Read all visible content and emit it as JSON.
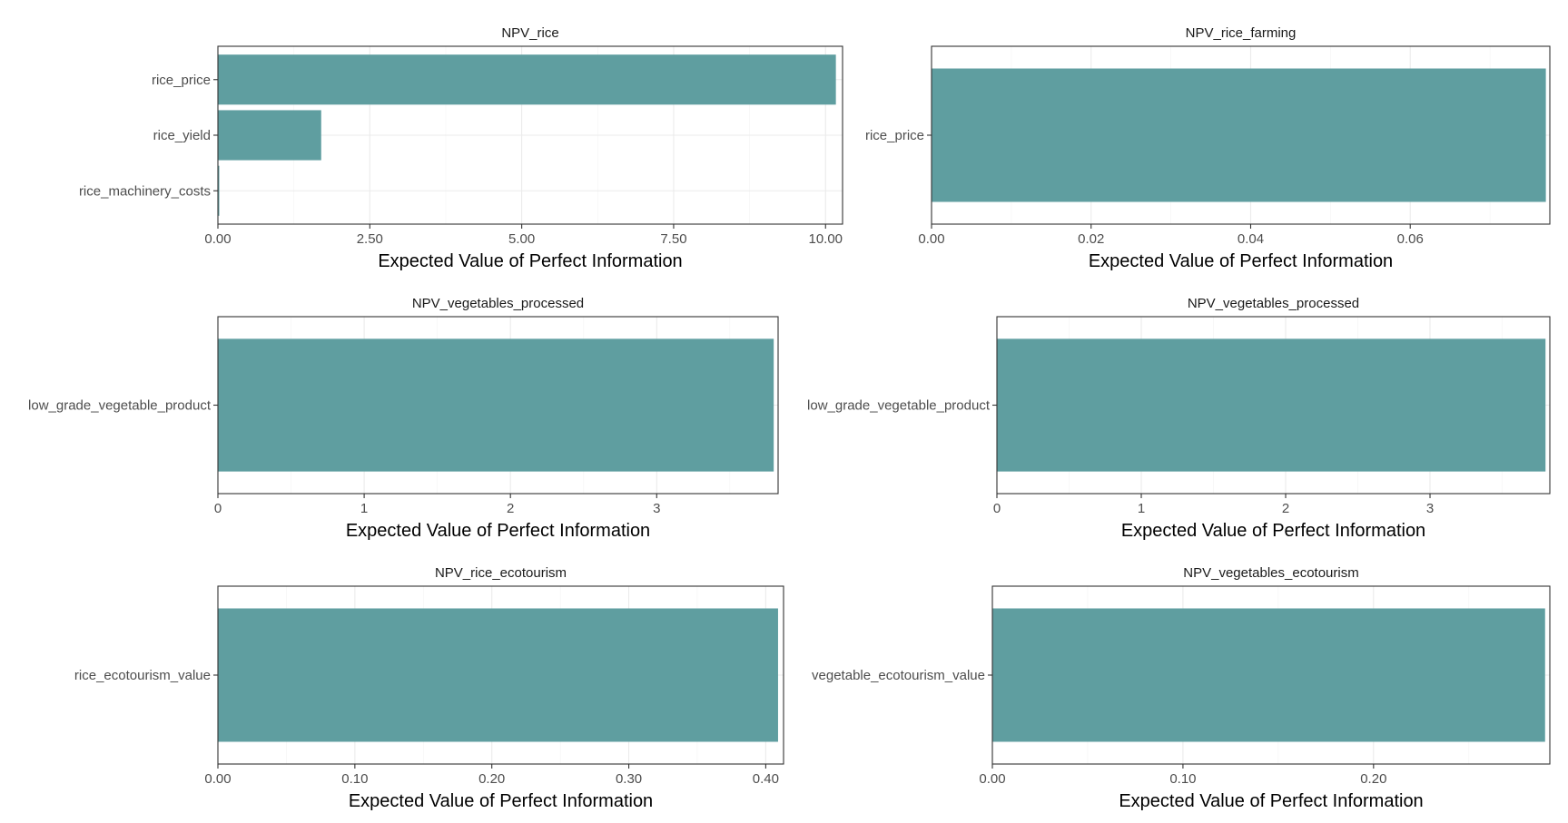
{
  "chart_data": [
    {
      "type": "bar",
      "orientation": "horizontal",
      "title": "NPV_rice",
      "categories": [
        "rice_price",
        "rice_yield",
        "rice_machinery_costs"
      ],
      "values": [
        10.17,
        1.7,
        0.02
      ],
      "xlabel": "Expected Value of Perfect Information",
      "ylabel": "",
      "xlim": [
        0,
        10.28
      ],
      "xticks": [
        0,
        2.5,
        5,
        7.5,
        10
      ],
      "xtick_labels": [
        "0.00",
        "2.50",
        "5.00",
        "7.50",
        "10.00"
      ],
      "grid": true,
      "bar_color": "#5f9ea0"
    },
    {
      "type": "bar",
      "orientation": "horizontal",
      "title": "NPV_rice_farming",
      "categories": [
        "rice_price"
      ],
      "values": [
        0.077
      ],
      "xlabel": "Expected Value of Perfect Information",
      "ylabel": "",
      "xlim": [
        0,
        0.0775
      ],
      "xticks": [
        0,
        0.02,
        0.04,
        0.06
      ],
      "xtick_labels": [
        "0.00",
        "0.02",
        "0.04",
        "0.06"
      ],
      "grid": true,
      "bar_color": "#5f9ea0"
    },
    {
      "type": "bar",
      "orientation": "horizontal",
      "title": "NPV_vegetables_processed",
      "categories": [
        "low_grade_vegetable_product"
      ],
      "values": [
        3.8
      ],
      "xlabel": "Expected Value of Perfect Information",
      "ylabel": "",
      "xlim": [
        0,
        3.83
      ],
      "xticks": [
        0,
        1,
        2,
        3
      ],
      "xtick_labels": [
        "0",
        "1",
        "2",
        "3"
      ],
      "grid": true,
      "bar_color": "#5f9ea0"
    },
    {
      "type": "bar",
      "orientation": "horizontal",
      "title": "NPV_vegetables_processed",
      "categories": [
        "low_grade_vegetable_product"
      ],
      "values": [
        3.8
      ],
      "xlabel": "Expected Value of Perfect Information",
      "ylabel": "",
      "xlim": [
        0,
        3.83
      ],
      "xticks": [
        0,
        1,
        2,
        3
      ],
      "xtick_labels": [
        "0",
        "1",
        "2",
        "3"
      ],
      "grid": true,
      "bar_color": "#5f9ea0"
    },
    {
      "type": "bar",
      "orientation": "horizontal",
      "title": "NPV_rice_ecotourism",
      "categories": [
        "rice_ecotourism_value"
      ],
      "values": [
        0.409
      ],
      "xlabel": "Expected Value of Perfect Information",
      "ylabel": "",
      "xlim": [
        0,
        0.413
      ],
      "xticks": [
        0,
        0.1,
        0.2,
        0.3,
        0.4
      ],
      "xtick_labels": [
        "0.00",
        "0.10",
        "0.20",
        "0.30",
        "0.40"
      ],
      "grid": true,
      "bar_color": "#5f9ea0"
    },
    {
      "type": "bar",
      "orientation": "horizontal",
      "title": "NPV_vegetables_ecotourism",
      "categories": [
        "vegetable_ecotourism_value"
      ],
      "values": [
        0.29
      ],
      "xlabel": "Expected Value of Perfect Information",
      "ylabel": "",
      "xlim": [
        0,
        0.2925
      ],
      "xticks": [
        0,
        0.1,
        0.2
      ],
      "xtick_labels": [
        "0.00",
        "0.10",
        "0.20"
      ],
      "grid": true,
      "bar_color": "#5f9ea0"
    }
  ]
}
